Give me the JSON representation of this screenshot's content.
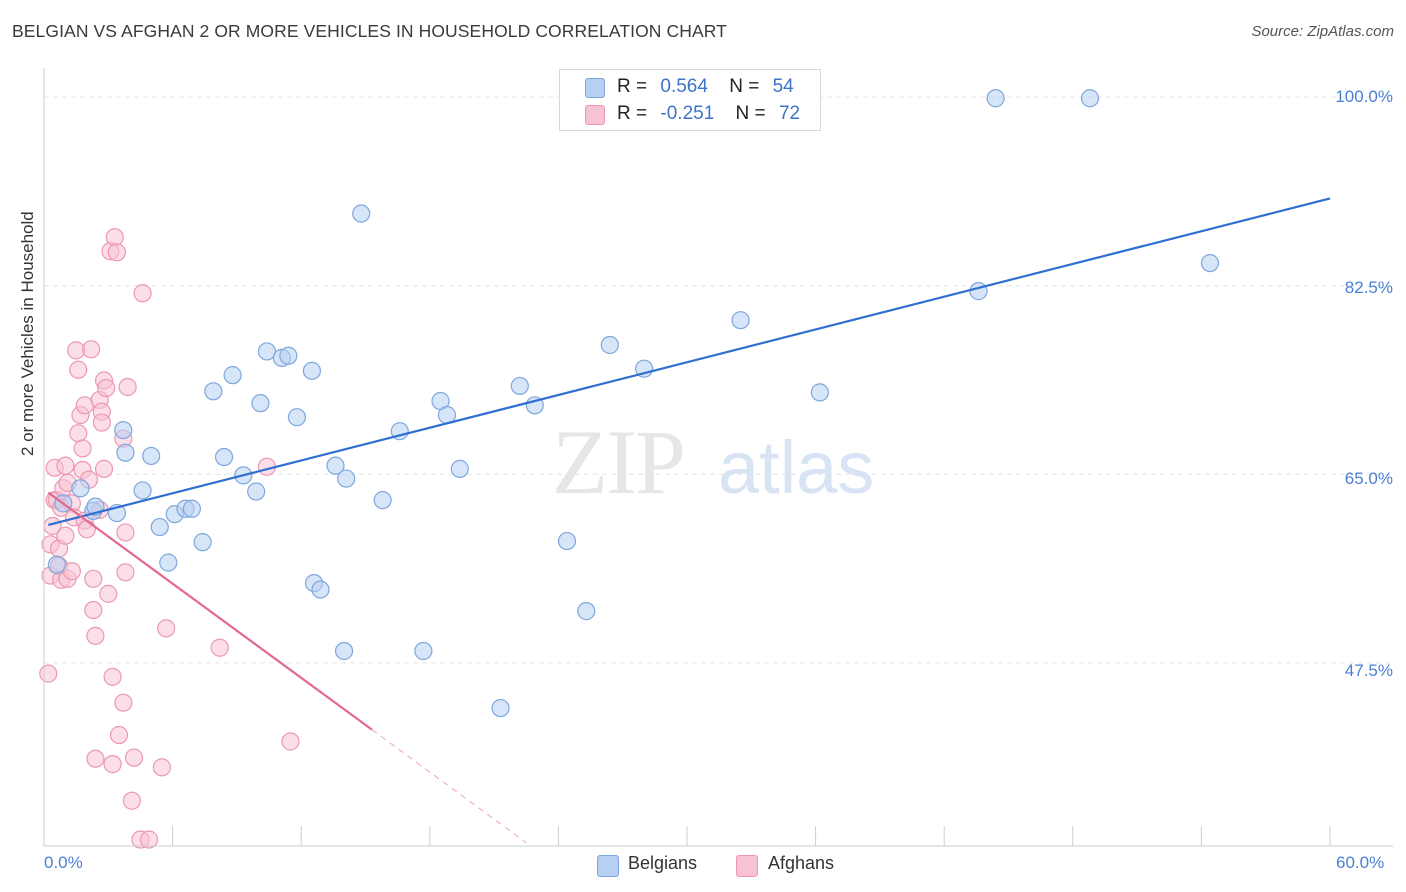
{
  "header": {
    "title": "BELGIAN VS AFGHAN 2 OR MORE VEHICLES IN HOUSEHOLD CORRELATION CHART",
    "source": "Source: ZipAtlas.com"
  },
  "watermark": {
    "zip": "ZIP",
    "atlas": "atlas"
  },
  "legend": {
    "belgians": {
      "r_label": "R =",
      "r_value": "0.564",
      "n_label": "N =",
      "n_value": "54"
    },
    "afghans": {
      "r_label": "R =",
      "r_value": "-0.251",
      "n_label": "N =",
      "n_value": "72"
    }
  },
  "bottom_legend": {
    "belgians": "Belgians",
    "afghans": "Afghans"
  },
  "colors": {
    "belgians_fill": "#b7d0f2",
    "belgians_stroke": "#7fa6dd",
    "belgians_line": "#2f6fcf",
    "afghans_fill": "#f7c2d3",
    "afghans_stroke": "#ec98b4",
    "afghans_line": "#e3688f",
    "tick_text": "#4a7fd4",
    "grid": "#e4e4e4"
  },
  "chart_data": {
    "type": "scatter",
    "title": "BELGIAN VS AFGHAN 2 OR MORE VEHICLES IN HOUSEHOLD CORRELATION CHART",
    "xlabel": "",
    "ylabel": "2 or more Vehicles in Household",
    "xlim": [
      0,
      60
    ],
    "ylim": [
      30.5,
      101.5
    ],
    "x_tick_labels": [
      "0.0%",
      "60.0%"
    ],
    "y_ticks": [
      47.5,
      65.0,
      82.5,
      100.0
    ],
    "y_tick_labels": [
      "47.5%",
      "65.0%",
      "82.5%",
      "100.0%"
    ],
    "grid": true,
    "legend_position": "top-center",
    "series": [
      {
        "name": "Belgians",
        "r": 0.564,
        "n": 54,
        "trend": {
          "x": [
            0.2,
            60
          ],
          "y": [
            60.3,
            90.6
          ]
        },
        "points": [
          [
            0.6,
            56.6
          ],
          [
            0.9,
            62.3
          ],
          [
            1.7,
            63.7
          ],
          [
            2.3,
            61.6
          ],
          [
            2.4,
            62.0
          ],
          [
            3.4,
            61.4
          ],
          [
            3.7,
            69.1
          ],
          [
            3.8,
            67.0
          ],
          [
            4.6,
            63.5
          ],
          [
            5.0,
            66.7
          ],
          [
            5.4,
            60.1
          ],
          [
            5.8,
            56.8
          ],
          [
            6.1,
            61.3
          ],
          [
            6.6,
            61.8
          ],
          [
            6.9,
            61.8
          ],
          [
            7.4,
            58.7
          ],
          [
            7.9,
            72.7
          ],
          [
            8.4,
            66.6
          ],
          [
            8.8,
            74.2
          ],
          [
            9.3,
            64.9
          ],
          [
            9.9,
            63.4
          ],
          [
            10.1,
            71.6
          ],
          [
            10.4,
            76.4
          ],
          [
            11.1,
            75.8
          ],
          [
            11.4,
            76.0
          ],
          [
            11.8,
            70.3
          ],
          [
            12.5,
            74.6
          ],
          [
            12.6,
            54.9
          ],
          [
            12.9,
            54.3
          ],
          [
            13.6,
            65.8
          ],
          [
            14.0,
            48.6
          ],
          [
            14.1,
            64.6
          ],
          [
            14.8,
            89.2
          ],
          [
            15.8,
            62.6
          ],
          [
            16.6,
            69.0
          ],
          [
            17.7,
            48.6
          ],
          [
            18.5,
            71.8
          ],
          [
            18.8,
            70.5
          ],
          [
            19.4,
            65.5
          ],
          [
            21.3,
            43.3
          ],
          [
            22.2,
            73.2
          ],
          [
            22.9,
            71.4
          ],
          [
            24.4,
            58.8
          ],
          [
            25.3,
            52.3
          ],
          [
            26.4,
            77.0
          ],
          [
            28.0,
            74.8
          ],
          [
            32.5,
            79.3
          ],
          [
            36.2,
            72.6
          ],
          [
            43.6,
            82.0
          ],
          [
            44.4,
            99.9
          ],
          [
            48.8,
            99.9
          ],
          [
            54.4,
            84.6
          ]
        ]
      },
      {
        "name": "Afghans",
        "r": -0.251,
        "n": 72,
        "trend": {
          "x": [
            0.2,
            15.3
          ],
          "y": [
            63.3,
            41.3
          ]
        },
        "trend_extension": {
          "x": [
            15.3,
            22.5
          ],
          "y": [
            41.3,
            30.8
          ]
        },
        "points": [
          [
            0.2,
            46.5
          ],
          [
            0.3,
            55.6
          ],
          [
            0.3,
            58.5
          ],
          [
            0.4,
            60.2
          ],
          [
            0.5,
            62.6
          ],
          [
            0.5,
            65.6
          ],
          [
            0.6,
            62.6
          ],
          [
            0.7,
            58.1
          ],
          [
            0.7,
            56.5
          ],
          [
            0.8,
            55.2
          ],
          [
            0.8,
            61.9
          ],
          [
            0.9,
            63.7
          ],
          [
            1.0,
            65.8
          ],
          [
            1.0,
            59.3
          ],
          [
            1.1,
            64.2
          ],
          [
            1.1,
            55.3
          ],
          [
            1.3,
            62.3
          ],
          [
            1.3,
            56.0
          ],
          [
            1.4,
            61.0
          ],
          [
            1.5,
            76.5
          ],
          [
            1.6,
            74.7
          ],
          [
            1.6,
            68.8
          ],
          [
            1.7,
            70.5
          ],
          [
            1.8,
            67.4
          ],
          [
            1.8,
            65.4
          ],
          [
            1.9,
            71.4
          ],
          [
            1.9,
            60.7
          ],
          [
            2.0,
            59.9
          ],
          [
            2.1,
            64.5
          ],
          [
            2.2,
            76.6
          ],
          [
            2.3,
            55.3
          ],
          [
            2.3,
            52.4
          ],
          [
            2.4,
            50.0
          ],
          [
            2.4,
            38.6
          ],
          [
            2.6,
            71.9
          ],
          [
            2.6,
            61.7
          ],
          [
            2.7,
            70.8
          ],
          [
            2.7,
            69.8
          ],
          [
            2.8,
            73.7
          ],
          [
            2.8,
            65.5
          ],
          [
            2.9,
            73.0
          ],
          [
            3.0,
            53.9
          ],
          [
            3.1,
            85.7
          ],
          [
            3.2,
            46.2
          ],
          [
            3.2,
            38.1
          ],
          [
            3.3,
            87.0
          ],
          [
            3.4,
            85.6
          ],
          [
            3.5,
            40.8
          ],
          [
            3.7,
            68.3
          ],
          [
            3.7,
            43.8
          ],
          [
            3.8,
            59.6
          ],
          [
            3.8,
            55.9
          ],
          [
            3.9,
            73.1
          ],
          [
            4.1,
            34.7
          ],
          [
            4.2,
            38.7
          ],
          [
            4.5,
            31.1
          ],
          [
            4.6,
            81.8
          ],
          [
            4.9,
            31.1
          ],
          [
            5.5,
            37.8
          ],
          [
            5.7,
            50.7
          ],
          [
            8.2,
            48.9
          ],
          [
            10.4,
            65.7
          ],
          [
            11.5,
            40.2
          ]
        ]
      }
    ]
  }
}
